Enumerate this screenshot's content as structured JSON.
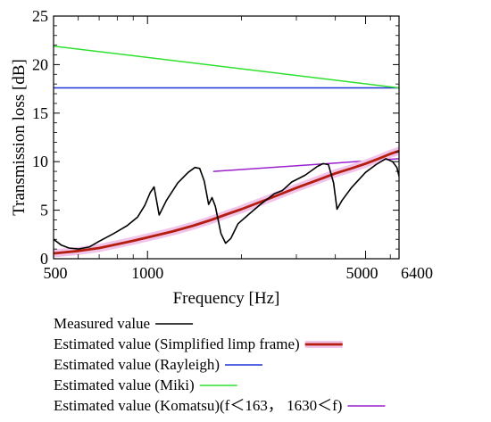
{
  "chart_data": {
    "type": "line",
    "xlabel": "Frequency [Hz]",
    "ylabel": "Transmission loss [dB]",
    "x_scale": "log",
    "xlim": [
      500,
      6400
    ],
    "ylim": [
      0,
      25
    ],
    "x_ticks": [
      500,
      1000,
      5000,
      6400
    ],
    "x_tick_labels": [
      "500",
      "1000",
      "5000",
      "6400"
    ],
    "y_ticks": [
      0,
      5,
      10,
      15,
      20,
      25
    ],
    "y_tick_labels": [
      "0",
      "5",
      "10",
      "15",
      "20",
      "25"
    ],
    "grid": false,
    "legend_position": "below",
    "series": [
      {
        "name": "Measured value",
        "color": "#000000",
        "points": [
          [
            500,
            2.0
          ],
          [
            530,
            1.4
          ],
          [
            560,
            1.1
          ],
          [
            600,
            1.0
          ],
          [
            650,
            1.2
          ],
          [
            700,
            1.8
          ],
          [
            780,
            2.6
          ],
          [
            860,
            3.4
          ],
          [
            930,
            4.3
          ],
          [
            980,
            5.5
          ],
          [
            1020,
            6.8
          ],
          [
            1050,
            7.4
          ],
          [
            1090,
            4.5
          ],
          [
            1150,
            6.0
          ],
          [
            1250,
            7.8
          ],
          [
            1350,
            8.9
          ],
          [
            1420,
            9.4
          ],
          [
            1470,
            9.3
          ],
          [
            1520,
            8.0
          ],
          [
            1570,
            5.6
          ],
          [
            1610,
            6.3
          ],
          [
            1650,
            5.4
          ],
          [
            1720,
            2.6
          ],
          [
            1780,
            1.6
          ],
          [
            1850,
            2.1
          ],
          [
            1950,
            3.6
          ],
          [
            2100,
            4.5
          ],
          [
            2300,
            5.6
          ],
          [
            2550,
            6.7
          ],
          [
            2700,
            7.0
          ],
          [
            2900,
            7.9
          ],
          [
            3200,
            8.6
          ],
          [
            3500,
            9.5
          ],
          [
            3650,
            9.8
          ],
          [
            3800,
            9.7
          ],
          [
            3950,
            7.8
          ],
          [
            4050,
            5.1
          ],
          [
            4200,
            6.0
          ],
          [
            4500,
            7.3
          ],
          [
            5000,
            8.9
          ],
          [
            5400,
            9.7
          ],
          [
            5800,
            10.3
          ],
          [
            6100,
            10.0
          ],
          [
            6300,
            9.4
          ],
          [
            6400,
            8.5
          ]
        ]
      },
      {
        "name": "Estimated value (Simplified limp frame)",
        "color": "#b41e0e",
        "halo_color": "#f2c4ea",
        "points": [
          [
            500,
            0.55
          ],
          [
            600,
            0.8
          ],
          [
            700,
            1.1
          ],
          [
            800,
            1.5
          ],
          [
            900,
            1.85
          ],
          [
            1000,
            2.2
          ],
          [
            1200,
            2.8
          ],
          [
            1400,
            3.4
          ],
          [
            1600,
            4.0
          ],
          [
            1800,
            4.6
          ],
          [
            2000,
            5.1
          ],
          [
            2500,
            6.3
          ],
          [
            3000,
            7.3
          ],
          [
            3500,
            8.1
          ],
          [
            4000,
            8.8
          ],
          [
            4500,
            9.3
          ],
          [
            5000,
            9.8
          ],
          [
            5500,
            10.3
          ],
          [
            6000,
            10.8
          ],
          [
            6400,
            11.1
          ]
        ]
      },
      {
        "name": "Estimated value (Rayleigh)",
        "color": "#1f34d6",
        "points": [
          [
            500,
            17.6
          ],
          [
            6400,
            17.6
          ]
        ]
      },
      {
        "name": "Estimated value (Miki)",
        "color": "#2ee02e",
        "points": [
          [
            500,
            21.9
          ],
          [
            6400,
            17.6
          ]
        ]
      },
      {
        "name": "Estimated value (Komatsu)(f＜163， 1630＜f)",
        "color": "#9a22cc",
        "points": [
          [
            1630,
            9.0
          ],
          [
            6400,
            10.3
          ]
        ]
      }
    ]
  }
}
